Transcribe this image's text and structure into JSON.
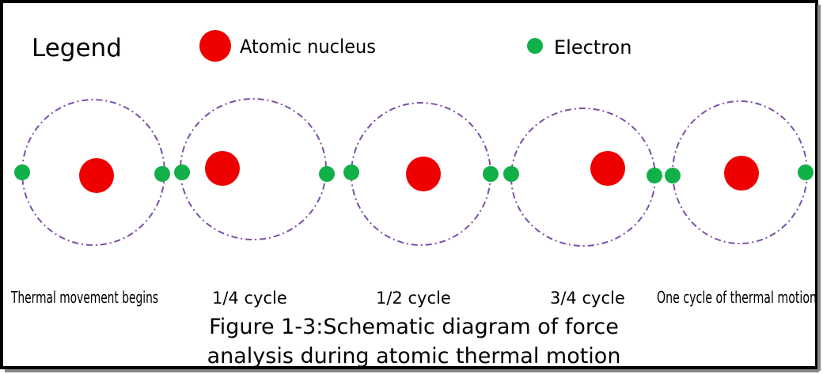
{
  "legend": {
    "title": "Legend",
    "items": [
      "Atomic nucleus",
      "Electron"
    ]
  },
  "stages": [
    "Thermal movement begins",
    "1/4 cycle",
    "1/2 cycle",
    "3/4 cycle",
    "One cycle of thermal motion"
  ],
  "caption": [
    "Figure 1-3:Schematic diagram of force",
    "analysis during atomic thermal motion"
  ]
}
